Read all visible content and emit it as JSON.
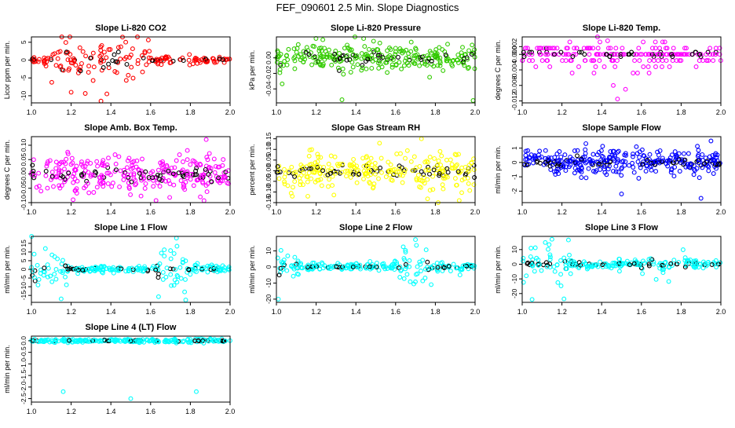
{
  "figure_title": "FEF_090601  2.5 Min. Slope Diagnostics",
  "colors": {
    "highlight": "#000000",
    "axis": "#000000"
  },
  "chart_data": [
    {
      "type": "scatter",
      "title": "Slope Li-820 CO2",
      "ylabel": "Licor ppm per min.",
      "color": "#ff0000",
      "xlim": [
        1.0,
        2.0
      ],
      "ylim": [
        -12,
        6.5
      ],
      "xticks": [
        1.0,
        1.2,
        1.4,
        1.6,
        1.8,
        2.0
      ],
      "yticks": [
        -10,
        -5,
        0,
        5
      ],
      "xticklabels": [
        "1.0",
        "1.2",
        "1.4",
        "1.6",
        "1.8",
        "2.0"
      ],
      "yticklabels": [
        "-10",
        "-5",
        "0",
        "5"
      ],
      "profile": {
        "n": 190,
        "core": 0.6,
        "tail": [
          1.1,
          1.6,
          4.0
        ],
        "wide": 0.35,
        "outliers": [
          [
            1.2,
            -9
          ],
          [
            1.35,
            -11.5
          ],
          [
            1.43,
            -3.5
          ],
          [
            1.38,
            -9.5
          ]
        ]
      }
    },
    {
      "type": "scatter",
      "title": "Slope Li-820 Pressure",
      "ylabel": "kPa per min.",
      "color": "#33cc00",
      "xlim": [
        1.0,
        2.0
      ],
      "ylim": [
        -0.058,
        0.027
      ],
      "xticks": [
        1.0,
        1.2,
        1.4,
        1.6,
        1.8,
        2.0
      ],
      "yticks": [
        -0.04,
        -0.02,
        0.0
      ],
      "xticklabels": [
        "1.0",
        "1.2",
        "1.4",
        "1.6",
        "1.8",
        "2.0"
      ],
      "yticklabels": [
        "-0.04",
        "-0.02",
        "0.00"
      ],
      "profile": {
        "n": 300,
        "core": 0.008,
        "tail": [
          1.0,
          1.7,
          0.012
        ],
        "wide": 0.0,
        "outliers": [
          [
            1.33,
            -0.054
          ],
          [
            1.99,
            -0.055
          ]
        ]
      }
    },
    {
      "type": "scatter",
      "title": "Slope Li-820 Temp.",
      "ylabel": "degrees C per min.",
      "color": "#ff00ff",
      "xlim": [
        1.0,
        2.0
      ],
      "ylim": [
        -0.0125,
        0.0045
      ],
      "xticks": [
        1.0,
        1.2,
        1.4,
        1.6,
        1.8,
        2.0
      ],
      "yticks": [
        -0.012,
        -0.008,
        -0.004,
        0.0,
        0.002
      ],
      "xticklabels": [
        "1.0",
        "1.2",
        "1.4",
        "1.6",
        "1.8",
        "2.0"
      ],
      "yticklabels": [
        "-0.012",
        "-0.008",
        "-0.004",
        "0.000",
        "0.002"
      ],
      "quantize": 0.0016,
      "profile": {
        "n": 230,
        "core": 0.0011,
        "tail": [
          1.0,
          1.75,
          0.002
        ],
        "wide": 0.0,
        "outliers": [
          [
            1.43,
            0.0035
          ],
          [
            1.48,
            -0.0115
          ],
          [
            1.52,
            -0.009
          ]
        ]
      }
    },
    {
      "type": "scatter",
      "title": "Slope Amb. Box Temp.",
      "ylabel": "degrees C per min.",
      "color": "#ff00ff",
      "xlim": [
        1.0,
        2.0
      ],
      "ylim": [
        -0.1,
        0.13
      ],
      "xticks": [
        1.0,
        1.2,
        1.4,
        1.6,
        1.8,
        2.0
      ],
      "yticks": [
        -0.1,
        -0.05,
        0.0,
        0.05,
        0.1
      ],
      "xticklabels": [
        "1.0",
        "1.2",
        "1.4",
        "1.6",
        "1.8",
        "2.0"
      ],
      "yticklabels": [
        "-0.10",
        "-0.05",
        "0.00",
        "0.05",
        "0.10"
      ],
      "profile": {
        "n": 320,
        "core": 0.035,
        "tail": [
          1.0,
          2.0,
          0.02
        ],
        "wide": 0.0,
        "outliers": [
          [
            1.88,
            0.12
          ],
          [
            1.21,
            -0.09
          ]
        ]
      }
    },
    {
      "type": "scatter",
      "title": "Slope Gas Stream RH",
      "ylabel": "percent per min.",
      "color": "#ffff00",
      "xlim": [
        1.0,
        2.0
      ],
      "ylim": [
        -0.15,
        0.16
      ],
      "xticks": [
        1.0,
        1.2,
        1.4,
        1.6,
        1.8,
        2.0
      ],
      "yticks": [
        -0.15,
        -0.1,
        -0.05,
        0.0,
        0.05,
        0.1,
        0.15
      ],
      "xticklabels": [
        "1.0",
        "1.2",
        "1.4",
        "1.6",
        "1.8",
        "2.0"
      ],
      "yticklabels": [
        "-0.15",
        "-0.10",
        "-0.05",
        "0.00",
        "0.05",
        "0.10",
        "0.15"
      ],
      "profile": {
        "n": 300,
        "core": 0.045,
        "tail": [
          1.0,
          2.0,
          0.03
        ],
        "wide": 0.0,
        "outliers": [
          [
            1.08,
            -0.12
          ],
          [
            1.73,
            0.15
          ],
          [
            1.92,
            -0.14
          ]
        ]
      }
    },
    {
      "type": "scatter",
      "title": "Slope Sample Flow",
      "ylabel": "ml/min per min.",
      "color": "#0000ff",
      "xlim": [
        1.0,
        2.0
      ],
      "ylim": [
        -2.8,
        1.8
      ],
      "xticks": [
        1.0,
        1.2,
        1.4,
        1.6,
        1.8,
        2.0
      ],
      "yticks": [
        -2,
        -1,
        0,
        1
      ],
      "xticklabels": [
        "1.0",
        "1.2",
        "1.4",
        "1.6",
        "1.8",
        "2.0"
      ],
      "yticklabels": [
        "-2",
        "-1",
        "0",
        "1"
      ],
      "profile": {
        "n": 340,
        "core": 0.45,
        "tail": [
          1.0,
          2.0,
          0.4
        ],
        "wide": 0.0,
        "outliers": [
          [
            1.95,
            1.5
          ],
          [
            1.9,
            -2.5
          ],
          [
            1.5,
            -2.2
          ]
        ]
      }
    },
    {
      "type": "scatter",
      "title": "Slope Line 1 Flow",
      "ylabel": "ml/min per min.",
      "color": "#00ffff",
      "xlim": [
        1.0,
        2.0
      ],
      "ylim": [
        -19,
        19
      ],
      "xticks": [
        1.0,
        1.2,
        1.4,
        1.6,
        1.8,
        2.0
      ],
      "yticks": [
        -15,
        -10,
        -5,
        0,
        5,
        10,
        15
      ],
      "xticklabels": [
        "1.0",
        "1.2",
        "1.4",
        "1.6",
        "1.8",
        "2.0"
      ],
      "yticklabels": [
        "-15",
        "-10",
        "-5",
        "0",
        "5",
        "10",
        "15"
      ],
      "profile": {
        "n": 230,
        "core": 1.2,
        "tail": [
          1.0,
          1.18,
          8.0
        ],
        "tail2": [
          1.63,
          1.78,
          8.0
        ],
        "wide": 0.0,
        "outliers": [
          [
            1.15,
            -17
          ],
          [
            1.73,
            18
          ]
        ]
      }
    },
    {
      "type": "scatter",
      "title": "Slope Line 2 Flow",
      "ylabel": "ml/min per min.",
      "color": "#00ffff",
      "xlim": [
        1.0,
        2.0
      ],
      "ylim": [
        -22,
        19
      ],
      "xticks": [
        1.0,
        1.2,
        1.4,
        1.6,
        1.8,
        2.0
      ],
      "yticks": [
        -20,
        -10,
        0,
        10
      ],
      "xticklabels": [
        "1.0",
        "1.2",
        "1.4",
        "1.6",
        "1.8",
        "2.0"
      ],
      "yticklabels": [
        "-20",
        "-10",
        "0",
        "10"
      ],
      "profile": {
        "n": 230,
        "core": 1.3,
        "tail": [
          1.0,
          1.12,
          7.0
        ],
        "tail2": [
          1.62,
          1.78,
          8.0
        ],
        "wide": 0.0,
        "outliers": [
          [
            1.01,
            -20
          ],
          [
            1.7,
            17
          ]
        ]
      }
    },
    {
      "type": "scatter",
      "title": "Slope Line 3 Flow",
      "ylabel": "ml/min per min.",
      "color": "#00ffff",
      "xlim": [
        1.0,
        2.0
      ],
      "ylim": [
        -26,
        19
      ],
      "xticks": [
        1.0,
        1.2,
        1.4,
        1.6,
        1.8,
        2.0
      ],
      "yticks": [
        -20,
        -10,
        0,
        10
      ],
      "xticklabels": [
        "1.0",
        "1.2",
        "1.4",
        "1.6",
        "1.8",
        "2.0"
      ],
      "yticklabels": [
        "-20",
        "-10",
        "0",
        "10"
      ],
      "profile": {
        "n": 230,
        "core": 1.6,
        "tail": [
          1.0,
          1.25,
          9.0
        ],
        "tail2": [
          1.6,
          1.85,
          5.0
        ],
        "wide": 0.0,
        "outliers": [
          [
            1.05,
            -24
          ],
          [
            1.15,
            17
          ]
        ]
      }
    },
    {
      "type": "scatter",
      "title": "Slope Line 4 (LT) Flow",
      "ylabel": "ml/min per min.",
      "color": "#00ffff",
      "xlim": [
        1.0,
        2.0
      ],
      "ylim": [
        -2.65,
        0.2
      ],
      "xticks": [
        1.0,
        1.2,
        1.4,
        1.6,
        1.8,
        2.0
      ],
      "yticks": [
        -2.5,
        -2.0,
        -1.5,
        -1.0,
        -0.5,
        0.0
      ],
      "xticklabels": [
        "1.0",
        "1.2",
        "1.4",
        "1.6",
        "1.8",
        "2.0"
      ],
      "yticklabels": [
        "-2.5",
        "-2.0",
        "-1.5",
        "-1.0",
        "-0.5",
        "0.0"
      ],
      "profile": {
        "n": 240,
        "core": 0.04,
        "tail": [
          1.0,
          2.0,
          0.03
        ],
        "wide": 0.0,
        "outliers": [
          [
            1.16,
            -2.2
          ],
          [
            1.5,
            -2.5
          ],
          [
            1.83,
            -2.2
          ]
        ]
      }
    }
  ]
}
